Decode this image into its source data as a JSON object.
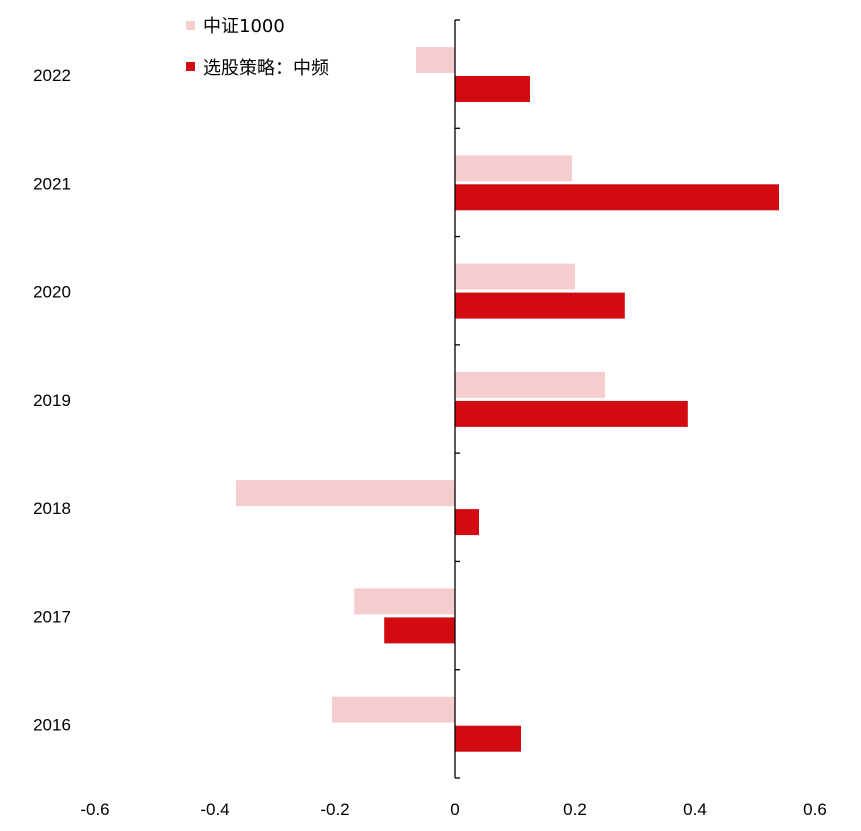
{
  "chart_data": {
    "type": "bar",
    "orientation": "horizontal",
    "categories": [
      "2022",
      "2021",
      "2020",
      "2019",
      "2018",
      "2017",
      "2016"
    ],
    "series": [
      {
        "name": "中证1000",
        "color": "#F6CDCF",
        "values": [
          -0.065,
          0.195,
          0.2,
          0.25,
          -0.365,
          -0.168,
          -0.205
        ]
      },
      {
        "name": "选股策略：中频",
        "color": "#D20A12",
        "values": [
          0.125,
          0.54,
          0.283,
          0.388,
          0.04,
          -0.118,
          0.11
        ]
      }
    ],
    "xlim": [
      -0.6,
      0.6
    ],
    "xticks": [
      "-0.6",
      "-0.4",
      "-0.2",
      "0",
      "0.2",
      "0.4",
      "0.6"
    ],
    "grid": false,
    "legend_position": "top-center"
  }
}
